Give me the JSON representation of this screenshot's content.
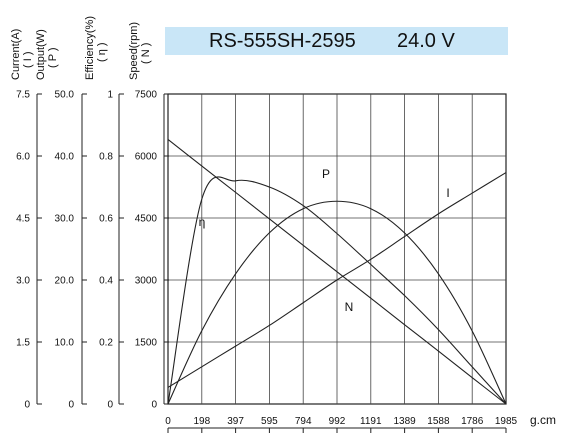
{
  "title": {
    "model": "RS-555SH-2595",
    "voltage": "24.0 V"
  },
  "axes": {
    "current": {
      "name": "Current(A)",
      "symbol": "( I )",
      "ticks": [
        "0",
        "1.5",
        "3.0",
        "4.5",
        "6.0",
        "7.5"
      ]
    },
    "output": {
      "name": "Output(W)",
      "symbol": "( P )",
      "ticks": [
        "0",
        "10.0",
        "20.0",
        "30.0",
        "40.0",
        "50.0"
      ]
    },
    "efficiency": {
      "name": "Efficiency(%)",
      "symbol": "( η )",
      "ticks": [
        "0",
        "0.2",
        "0.4",
        "0.6",
        "0.8",
        "1"
      ]
    },
    "speed": {
      "name": "Speed(rpm)",
      "symbol": "( N )",
      "ticks": [
        "0",
        "1500",
        "3000",
        "4500",
        "6000",
        "7500"
      ]
    },
    "torque": {
      "unit": "g.cm",
      "ticks": [
        "0",
        "198",
        "397",
        "595",
        "794",
        "992",
        "1191",
        "1389",
        "1588",
        "1786",
        "1985"
      ]
    }
  },
  "chart_data": {
    "type": "line",
    "title": "RS-555SH-2595 24.0 V",
    "xlabel": "g.cm",
    "xlim": [
      0,
      1985
    ],
    "x": [
      0,
      198,
      397,
      595,
      794,
      992,
      1191,
      1389,
      1588,
      1786,
      1985
    ],
    "grid": true,
    "series": [
      {
        "name": "N",
        "axis": "speed",
        "ylim": [
          0,
          7500
        ],
        "values": [
          6400,
          5760,
          5120,
          4480,
          3840,
          3200,
          2560,
          1920,
          1280,
          640,
          0
        ]
      },
      {
        "name": "I",
        "axis": "current",
        "ylim": [
          0,
          7.5
        ],
        "values": [
          0.4,
          0.9,
          1.4,
          1.9,
          2.45,
          3.0,
          3.5,
          4.05,
          4.6,
          5.1,
          5.6
        ]
      },
      {
        "name": "P",
        "axis": "output",
        "ylim": [
          0,
          50
        ],
        "values": [
          0,
          11.8,
          21.0,
          27.6,
          31.5,
          32.7,
          31.5,
          27.6,
          21.0,
          11.8,
          0
        ]
      },
      {
        "name": "η",
        "axis": "efficiency",
        "ylim": [
          0,
          1
        ],
        "values": [
          0,
          0.66,
          0.72,
          0.7,
          0.64,
          0.55,
          0.45,
          0.35,
          0.24,
          0.12,
          0
        ]
      }
    ]
  }
}
